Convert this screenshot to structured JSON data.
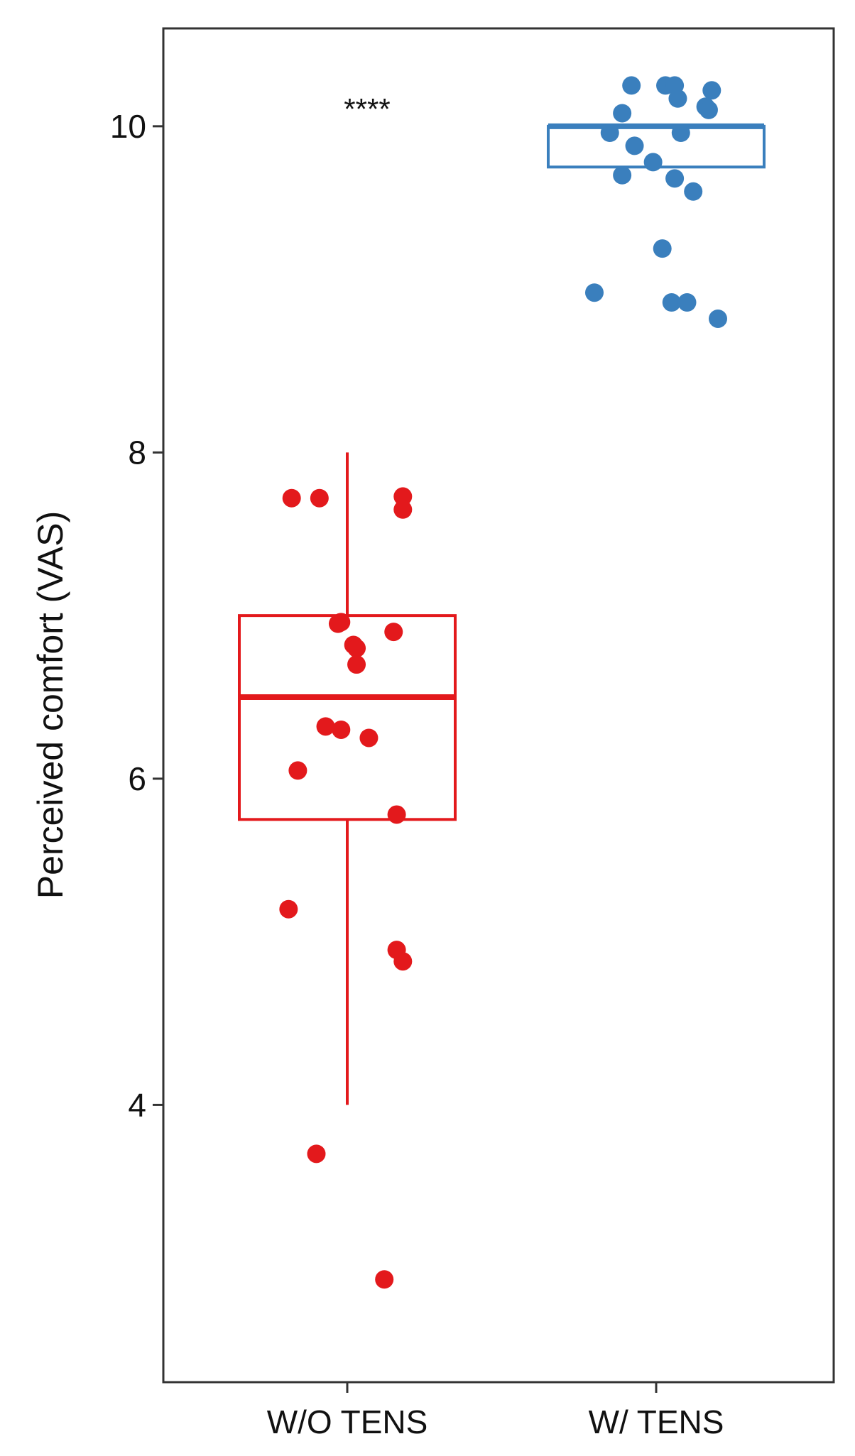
{
  "chart_data": {
    "type": "box",
    "ylabel": "Perceived comfort (VAS)",
    "ylim": [
      2.3,
      10.6
    ],
    "yticks": [
      4,
      6,
      8,
      10
    ],
    "categories": [
      "W/O TENS",
      "W/ TENS"
    ],
    "significance": "****",
    "grid": false,
    "legend": "none",
    "series": [
      {
        "category": "W/O TENS",
        "color": "#e3191c",
        "box": {
          "q1": 5.75,
          "median": 6.5,
          "q3": 7.0,
          "whisker_low": 4.0,
          "whisker_high": 8.0
        },
        "points": [
          [
            -0.18,
            7.72
          ],
          [
            -0.09,
            7.72
          ],
          [
            0.18,
            7.73
          ],
          [
            0.18,
            7.65
          ],
          [
            -0.03,
            6.95
          ],
          [
            -0.02,
            6.96
          ],
          [
            0.15,
            6.9
          ],
          [
            0.02,
            6.82
          ],
          [
            0.03,
            6.8
          ],
          [
            0.03,
            6.7
          ],
          [
            -0.07,
            6.32
          ],
          [
            -0.02,
            6.3
          ],
          [
            0.07,
            6.25
          ],
          [
            -0.16,
            6.05
          ],
          [
            0.16,
            5.78
          ],
          [
            -0.19,
            5.2
          ],
          [
            0.16,
            4.95
          ],
          [
            0.18,
            4.88
          ],
          [
            -0.1,
            3.7
          ],
          [
            0.12,
            2.93
          ]
        ]
      },
      {
        "category": "W/ TENS",
        "color": "#3a7fbd",
        "box": {
          "q1": 9.75,
          "median": 10.0,
          "q3": 10.0,
          "whisker_low": 9.75,
          "whisker_high": 10.0
        },
        "points": [
          [
            -0.08,
            10.25
          ],
          [
            0.03,
            10.25
          ],
          [
            0.06,
            10.25
          ],
          [
            0.18,
            10.22
          ],
          [
            0.07,
            10.17
          ],
          [
            0.16,
            10.12
          ],
          [
            0.17,
            10.1
          ],
          [
            -0.11,
            10.08
          ],
          [
            -0.15,
            9.96
          ],
          [
            0.08,
            9.96
          ],
          [
            -0.07,
            9.88
          ],
          [
            -0.01,
            9.78
          ],
          [
            -0.11,
            9.7
          ],
          [
            0.06,
            9.68
          ],
          [
            0.12,
            9.6
          ],
          [
            0.02,
            9.25
          ],
          [
            -0.2,
            8.98
          ],
          [
            0.05,
            8.92
          ],
          [
            0.1,
            8.92
          ],
          [
            0.2,
            8.82
          ]
        ]
      }
    ]
  }
}
